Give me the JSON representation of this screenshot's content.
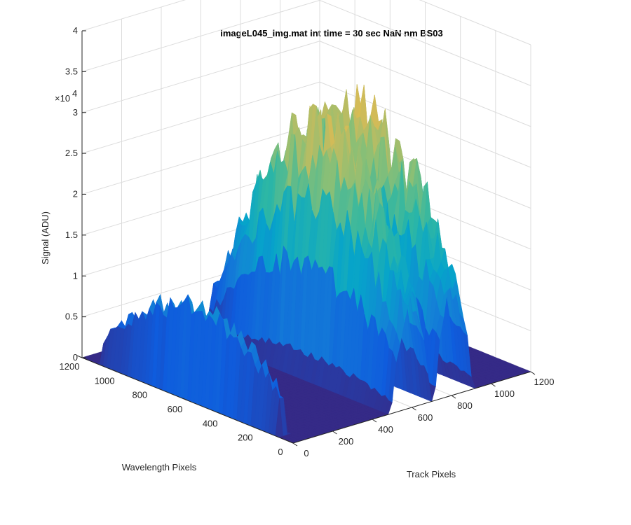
{
  "chart_data": {
    "type": "surface",
    "title": "imageL045_img.mat int time = 30 sec  NaN nm BS03",
    "xlabel": "Track Pixels",
    "ylabel": "Wavelength Pixels",
    "zlabel": "Signal (ADU)",
    "z_exponent_label": "×10",
    "z_exponent": "4",
    "xlim": [
      0,
      1200
    ],
    "ylim": [
      0,
      1200
    ],
    "zlim": [
      0,
      40000
    ],
    "x_ticks": [
      "0",
      "200",
      "400",
      "600",
      "800",
      "1000",
      "1200"
    ],
    "y_ticks": [
      "0",
      "200",
      "400",
      "600",
      "800",
      "1000",
      "1200"
    ],
    "z_ticks": [
      "0",
      "0.5",
      "1",
      "1.5",
      "2",
      "2.5",
      "3",
      "3.5",
      "4"
    ],
    "grid": true,
    "colormap": [
      "#352a87",
      "#0f5cdd",
      "#1481d6",
      "#06a4ca",
      "#2eb7a4",
      "#87bf77",
      "#d1bb59",
      "#fec832",
      "#f9fb0e"
    ],
    "series": [
      {
        "track_center": 30,
        "track_halfwidth": 30,
        "wavelength_start": 110,
        "wavelength_end": 1100,
        "peak_signal": 12500
      },
      {
        "track_center": 595,
        "track_halfwidth": 100,
        "wavelength_start": 0,
        "wavelength_end": 1040,
        "peak_signal": 30000
      },
      {
        "track_center": 810,
        "track_halfwidth": 95,
        "wavelength_start": 0,
        "wavelength_end": 1100,
        "peak_signal": 30000
      }
    ]
  }
}
